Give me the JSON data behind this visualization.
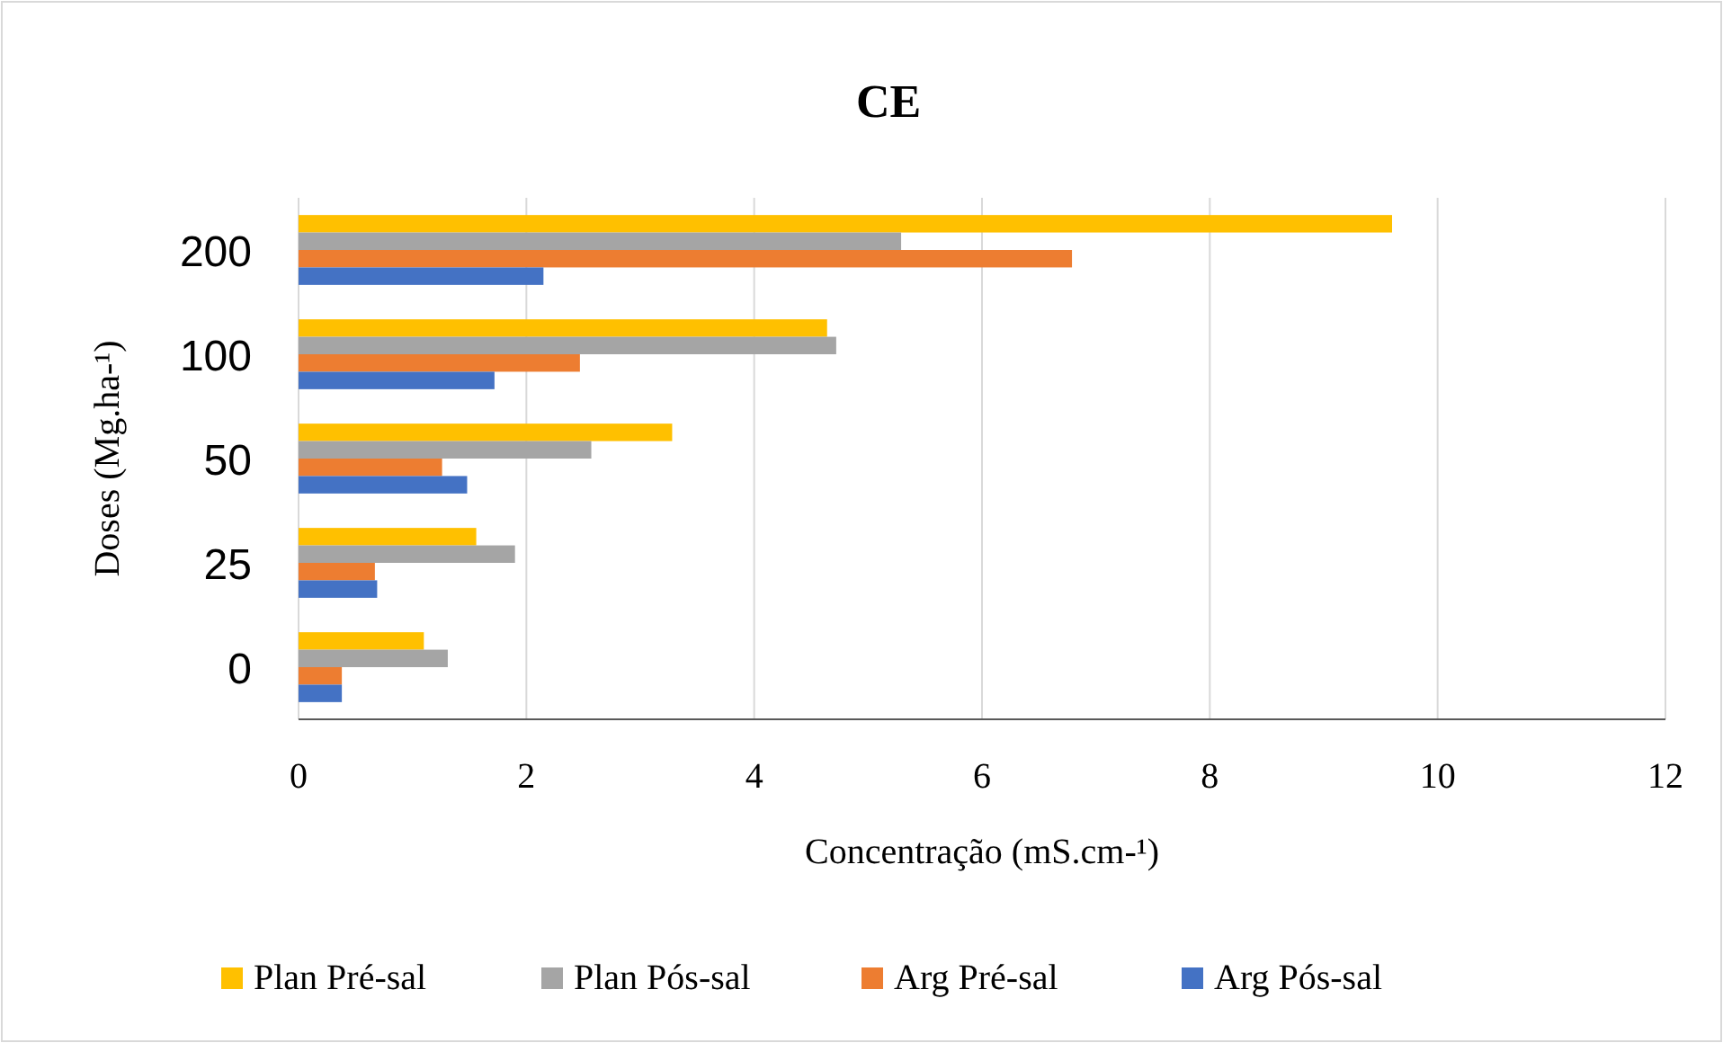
{
  "chart_data": {
    "type": "bar",
    "orientation": "horizontal",
    "title": "CE",
    "xlabel": "Concentração (mS.cm-¹)",
    "ylabel": "Doses (Mg.ha-¹)",
    "categories": [
      "200",
      "100",
      "50",
      "25",
      "0"
    ],
    "series": [
      {
        "name": "Plan Pré-sal",
        "color": "#ffc000",
        "values": [
          9.6,
          4.64,
          3.28,
          1.56,
          1.1
        ]
      },
      {
        "name": "Plan Pós-sal",
        "color": "#a5a5a5",
        "values": [
          5.29,
          4.72,
          2.57,
          1.9,
          1.31
        ]
      },
      {
        "name": "Arg Pré-sal",
        "color": "#ed7d31",
        "values": [
          6.79,
          2.47,
          1.26,
          0.67,
          0.38
        ]
      },
      {
        "name": "Arg Pós-sal",
        "color": "#4472c4",
        "values": [
          2.15,
          1.72,
          1.48,
          0.69,
          0.38
        ]
      }
    ],
    "xlim": [
      0,
      12
    ],
    "xticks": [
      0,
      2,
      4,
      6,
      8,
      10,
      12
    ],
    "grid": "x",
    "legend": "bottom"
  }
}
